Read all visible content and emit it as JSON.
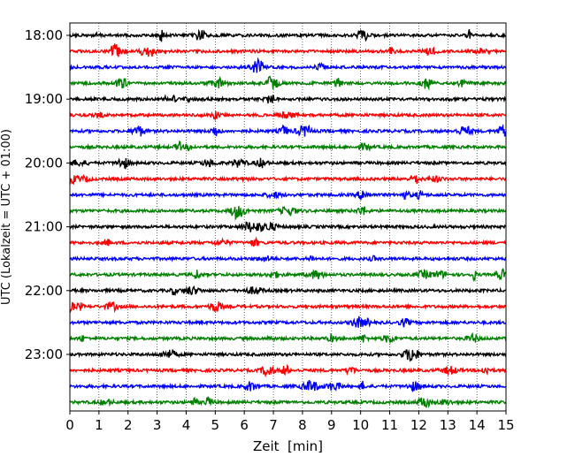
{
  "chart_data": {
    "type": "line",
    "title": "",
    "xlabel": "Zeit  [min]",
    "ylabel": "UTC (Lokalzeit = UTC + 01:00)",
    "xlim": [
      0,
      15
    ],
    "x_ticks": [
      "0",
      "1",
      "2",
      "3",
      "4",
      "5",
      "6",
      "7",
      "8",
      "9",
      "10",
      "11",
      "12",
      "13",
      "14",
      "15"
    ],
    "y_ticks": [
      "18:00",
      "19:00",
      "20:00",
      "21:00",
      "22:00",
      "23:00"
    ],
    "grid": "vertical dotted at each minute",
    "legend": "none",
    "colors": [
      "#000000",
      "#ff0000",
      "#0000ff",
      "#008000"
    ],
    "traces": [
      {
        "start": "18:00",
        "color": "#000000"
      },
      {
        "start": "18:15",
        "color": "#ff0000"
      },
      {
        "start": "18:30",
        "color": "#0000ff"
      },
      {
        "start": "18:45",
        "color": "#008000"
      },
      {
        "start": "19:00",
        "color": "#000000"
      },
      {
        "start": "19:15",
        "color": "#ff0000"
      },
      {
        "start": "19:30",
        "color": "#0000ff"
      },
      {
        "start": "19:45",
        "color": "#008000"
      },
      {
        "start": "20:00",
        "color": "#000000"
      },
      {
        "start": "20:15",
        "color": "#ff0000"
      },
      {
        "start": "20:30",
        "color": "#0000ff"
      },
      {
        "start": "20:45",
        "color": "#008000"
      },
      {
        "start": "21:00",
        "color": "#000000"
      },
      {
        "start": "21:15",
        "color": "#ff0000"
      },
      {
        "start": "21:30",
        "color": "#0000ff"
      },
      {
        "start": "21:45",
        "color": "#008000"
      },
      {
        "start": "22:00",
        "color": "#000000"
      },
      {
        "start": "22:15",
        "color": "#ff0000"
      },
      {
        "start": "22:30",
        "color": "#0000ff"
      },
      {
        "start": "22:45",
        "color": "#008000"
      },
      {
        "start": "23:00",
        "color": "#000000"
      },
      {
        "start": "23:15",
        "color": "#ff0000"
      },
      {
        "start": "23:30",
        "color": "#0000ff"
      },
      {
        "start": "23:45",
        "color": "#008000"
      }
    ]
  }
}
